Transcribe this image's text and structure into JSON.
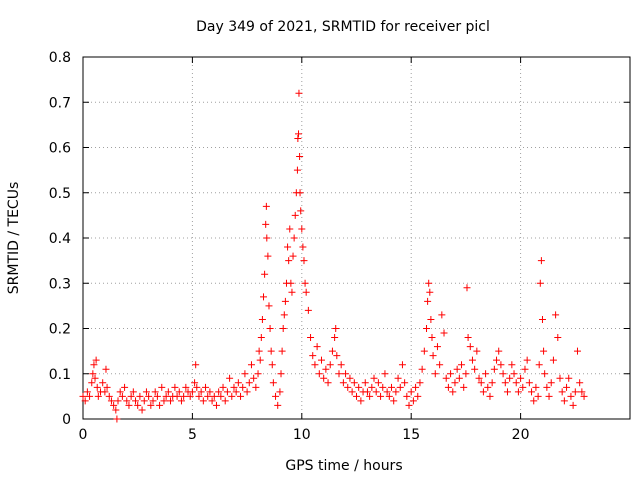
{
  "chart_data": {
    "type": "scatter",
    "title": "Day 349 of 2021, SRMTID for receiver picl",
    "xlabel": "GPS time / hours",
    "ylabel": "SRMTID / TECUs",
    "xlim": [
      0,
      25
    ],
    "ylim": [
      0,
      0.8
    ],
    "x_ticks": [
      0,
      5,
      10,
      15,
      20
    ],
    "x_tick_labels": [
      "0",
      "5",
      "10",
      "15",
      "20"
    ],
    "y_ticks": [
      0,
      0.1,
      0.2,
      0.3,
      0.4,
      0.5,
      0.6,
      0.7,
      0.8
    ],
    "y_tick_labels": [
      "0",
      "0.1",
      "0.2",
      "0.3",
      "0.4",
      "0.5",
      "0.6",
      "0.7",
      "0.8"
    ],
    "grid": true,
    "marker": "plus",
    "series_color": "#ff0000",
    "series": [
      {
        "name": "SRMTID",
        "points": [
          [
            0.0,
            0.05
          ],
          [
            0.1,
            0.04
          ],
          [
            0.2,
            0.06
          ],
          [
            0.3,
            0.05
          ],
          [
            0.4,
            0.08
          ],
          [
            0.45,
            0.1
          ],
          [
            0.5,
            0.12
          ],
          [
            0.55,
            0.09
          ],
          [
            0.6,
            0.13
          ],
          [
            0.65,
            0.07
          ],
          [
            0.7,
            0.05
          ],
          [
            0.8,
            0.06
          ],
          [
            0.9,
            0.08
          ],
          [
            1.0,
            0.06
          ],
          [
            1.05,
            0.11
          ],
          [
            1.1,
            0.07
          ],
          [
            1.2,
            0.05
          ],
          [
            1.3,
            0.04
          ],
          [
            1.4,
            0.03
          ],
          [
            1.5,
            0.02
          ],
          [
            1.55,
            0.0
          ],
          [
            1.6,
            0.04
          ],
          [
            1.7,
            0.06
          ],
          [
            1.8,
            0.05
          ],
          [
            1.9,
            0.07
          ],
          [
            2.0,
            0.04
          ],
          [
            2.1,
            0.03
          ],
          [
            2.2,
            0.05
          ],
          [
            2.3,
            0.06
          ],
          [
            2.4,
            0.04
          ],
          [
            2.5,
            0.03
          ],
          [
            2.6,
            0.05
          ],
          [
            2.7,
            0.02
          ],
          [
            2.8,
            0.04
          ],
          [
            2.9,
            0.06
          ],
          [
            3.0,
            0.05
          ],
          [
            3.1,
            0.03
          ],
          [
            3.2,
            0.04
          ],
          [
            3.3,
            0.06
          ],
          [
            3.4,
            0.05
          ],
          [
            3.5,
            0.03
          ],
          [
            3.6,
            0.07
          ],
          [
            3.7,
            0.04
          ],
          [
            3.8,
            0.05
          ],
          [
            3.9,
            0.06
          ],
          [
            4.0,
            0.04
          ],
          [
            4.1,
            0.05
          ],
          [
            4.2,
            0.07
          ],
          [
            4.3,
            0.05
          ],
          [
            4.4,
            0.06
          ],
          [
            4.5,
            0.04
          ],
          [
            4.6,
            0.05
          ],
          [
            4.7,
            0.07
          ],
          [
            4.8,
            0.06
          ],
          [
            4.9,
            0.05
          ],
          [
            5.0,
            0.06
          ],
          [
            5.1,
            0.08
          ],
          [
            5.15,
            0.12
          ],
          [
            5.2,
            0.07
          ],
          [
            5.3,
            0.05
          ],
          [
            5.4,
            0.06
          ],
          [
            5.5,
            0.04
          ],
          [
            5.6,
            0.07
          ],
          [
            5.7,
            0.05
          ],
          [
            5.8,
            0.06
          ],
          [
            5.9,
            0.04
          ],
          [
            6.0,
            0.05
          ],
          [
            6.1,
            0.03
          ],
          [
            6.2,
            0.06
          ],
          [
            6.3,
            0.05
          ],
          [
            6.4,
            0.07
          ],
          [
            6.5,
            0.04
          ],
          [
            6.6,
            0.06
          ],
          [
            6.7,
            0.09
          ],
          [
            6.8,
            0.05
          ],
          [
            6.9,
            0.07
          ],
          [
            7.0,
            0.06
          ],
          [
            7.1,
            0.08
          ],
          [
            7.2,
            0.05
          ],
          [
            7.3,
            0.07
          ],
          [
            7.4,
            0.1
          ],
          [
            7.5,
            0.06
          ],
          [
            7.6,
            0.08
          ],
          [
            7.7,
            0.12
          ],
          [
            7.8,
            0.09
          ],
          [
            7.9,
            0.07
          ],
          [
            8.0,
            0.1
          ],
          [
            8.05,
            0.15
          ],
          [
            8.1,
            0.13
          ],
          [
            8.15,
            0.18
          ],
          [
            8.2,
            0.22
          ],
          [
            8.25,
            0.27
          ],
          [
            8.3,
            0.32
          ],
          [
            8.35,
            0.43
          ],
          [
            8.38,
            0.47
          ],
          [
            8.4,
            0.4
          ],
          [
            8.45,
            0.36
          ],
          [
            8.5,
            0.25
          ],
          [
            8.55,
            0.2
          ],
          [
            8.6,
            0.15
          ],
          [
            8.65,
            0.12
          ],
          [
            8.7,
            0.08
          ],
          [
            8.8,
            0.05
          ],
          [
            8.9,
            0.03
          ],
          [
            9.0,
            0.06
          ],
          [
            9.05,
            0.1
          ],
          [
            9.1,
            0.15
          ],
          [
            9.15,
            0.2
          ],
          [
            9.2,
            0.23
          ],
          [
            9.25,
            0.26
          ],
          [
            9.3,
            0.3
          ],
          [
            9.35,
            0.38
          ],
          [
            9.4,
            0.35
          ],
          [
            9.45,
            0.42
          ],
          [
            9.5,
            0.3
          ],
          [
            9.55,
            0.28
          ],
          [
            9.6,
            0.36
          ],
          [
            9.65,
            0.4
          ],
          [
            9.7,
            0.45
          ],
          [
            9.75,
            0.5
          ],
          [
            9.8,
            0.55
          ],
          [
            9.82,
            0.62
          ],
          [
            9.85,
            0.63
          ],
          [
            9.87,
            0.72
          ],
          [
            9.9,
            0.58
          ],
          [
            9.92,
            0.5
          ],
          [
            9.95,
            0.46
          ],
          [
            10.0,
            0.42
          ],
          [
            10.05,
            0.38
          ],
          [
            10.1,
            0.35
          ],
          [
            10.15,
            0.3
          ],
          [
            10.2,
            0.28
          ],
          [
            10.3,
            0.24
          ],
          [
            10.4,
            0.18
          ],
          [
            10.5,
            0.14
          ],
          [
            10.6,
            0.12
          ],
          [
            10.7,
            0.16
          ],
          [
            10.8,
            0.1
          ],
          [
            10.9,
            0.13
          ],
          [
            11.0,
            0.09
          ],
          [
            11.1,
            0.11
          ],
          [
            11.2,
            0.08
          ],
          [
            11.3,
            0.12
          ],
          [
            11.4,
            0.15
          ],
          [
            11.5,
            0.18
          ],
          [
            11.55,
            0.2
          ],
          [
            11.6,
            0.14
          ],
          [
            11.7,
            0.1
          ],
          [
            11.8,
            0.12
          ],
          [
            11.9,
            0.08
          ],
          [
            12.0,
            0.1
          ],
          [
            12.1,
            0.07
          ],
          [
            12.2,
            0.09
          ],
          [
            12.3,
            0.06
          ],
          [
            12.4,
            0.08
          ],
          [
            12.5,
            0.05
          ],
          [
            12.6,
            0.07
          ],
          [
            12.7,
            0.04
          ],
          [
            12.8,
            0.06
          ],
          [
            12.9,
            0.08
          ],
          [
            13.0,
            0.06
          ],
          [
            13.1,
            0.05
          ],
          [
            13.2,
            0.07
          ],
          [
            13.3,
            0.09
          ],
          [
            13.4,
            0.06
          ],
          [
            13.5,
            0.08
          ],
          [
            13.6,
            0.05
          ],
          [
            13.7,
            0.07
          ],
          [
            13.8,
            0.1
          ],
          [
            13.9,
            0.06
          ],
          [
            14.0,
            0.05
          ],
          [
            14.1,
            0.07
          ],
          [
            14.2,
            0.04
          ],
          [
            14.3,
            0.06
          ],
          [
            14.4,
            0.09
          ],
          [
            14.5,
            0.07
          ],
          [
            14.6,
            0.12
          ],
          [
            14.7,
            0.08
          ],
          [
            14.8,
            0.05
          ],
          [
            14.9,
            0.03
          ],
          [
            15.0,
            0.06
          ],
          [
            15.1,
            0.04
          ],
          [
            15.2,
            0.07
          ],
          [
            15.3,
            0.05
          ],
          [
            15.4,
            0.08
          ],
          [
            15.5,
            0.11
          ],
          [
            15.6,
            0.15
          ],
          [
            15.7,
            0.2
          ],
          [
            15.75,
            0.26
          ],
          [
            15.8,
            0.3
          ],
          [
            15.85,
            0.28
          ],
          [
            15.9,
            0.22
          ],
          [
            15.95,
            0.18
          ],
          [
            16.0,
            0.14
          ],
          [
            16.1,
            0.1
          ],
          [
            16.2,
            0.16
          ],
          [
            16.3,
            0.12
          ],
          [
            16.4,
            0.23
          ],
          [
            16.5,
            0.19
          ],
          [
            16.6,
            0.09
          ],
          [
            16.7,
            0.07
          ],
          [
            16.8,
            0.1
          ],
          [
            16.9,
            0.06
          ],
          [
            17.0,
            0.08
          ],
          [
            17.1,
            0.11
          ],
          [
            17.2,
            0.09
          ],
          [
            17.3,
            0.12
          ],
          [
            17.4,
            0.07
          ],
          [
            17.5,
            0.1
          ],
          [
            17.55,
            0.29
          ],
          [
            17.6,
            0.18
          ],
          [
            17.7,
            0.16
          ],
          [
            17.8,
            0.13
          ],
          [
            17.9,
            0.11
          ],
          [
            18.0,
            0.15
          ],
          [
            18.1,
            0.09
          ],
          [
            18.2,
            0.08
          ],
          [
            18.3,
            0.06
          ],
          [
            18.4,
            0.1
          ],
          [
            18.5,
            0.07
          ],
          [
            18.6,
            0.05
          ],
          [
            18.7,
            0.08
          ],
          [
            18.8,
            0.11
          ],
          [
            18.9,
            0.13
          ],
          [
            19.0,
            0.15
          ],
          [
            19.1,
            0.12
          ],
          [
            19.2,
            0.1
          ],
          [
            19.3,
            0.08
          ],
          [
            19.4,
            0.06
          ],
          [
            19.5,
            0.09
          ],
          [
            19.6,
            0.12
          ],
          [
            19.7,
            0.1
          ],
          [
            19.8,
            0.08
          ],
          [
            19.9,
            0.06
          ],
          [
            20.0,
            0.09
          ],
          [
            20.1,
            0.07
          ],
          [
            20.2,
            0.11
          ],
          [
            20.3,
            0.13
          ],
          [
            20.4,
            0.08
          ],
          [
            20.5,
            0.06
          ],
          [
            20.6,
            0.04
          ],
          [
            20.7,
            0.07
          ],
          [
            20.8,
            0.05
          ],
          [
            20.85,
            0.12
          ],
          [
            20.9,
            0.3
          ],
          [
            20.95,
            0.35
          ],
          [
            21.0,
            0.22
          ],
          [
            21.05,
            0.15
          ],
          [
            21.1,
            0.1
          ],
          [
            21.2,
            0.07
          ],
          [
            21.3,
            0.05
          ],
          [
            21.4,
            0.08
          ],
          [
            21.5,
            0.13
          ],
          [
            21.6,
            0.23
          ],
          [
            21.7,
            0.18
          ],
          [
            21.8,
            0.09
          ],
          [
            21.9,
            0.06
          ],
          [
            22.0,
            0.04
          ],
          [
            22.1,
            0.07
          ],
          [
            22.2,
            0.09
          ],
          [
            22.3,
            0.05
          ],
          [
            22.4,
            0.03
          ],
          [
            22.5,
            0.06
          ],
          [
            22.6,
            0.15
          ],
          [
            22.7,
            0.08
          ],
          [
            22.8,
            0.06
          ],
          [
            22.9,
            0.05
          ]
        ]
      }
    ]
  }
}
